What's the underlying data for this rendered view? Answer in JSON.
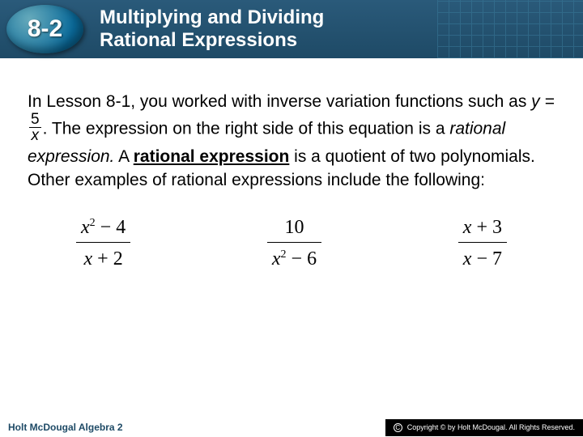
{
  "header": {
    "lesson_number": "8-2",
    "title_line1": "Multiplying and Dividing",
    "title_line2": "Rational Expressions",
    "badge_bg_gradient": [
      "#66aabb",
      "#0a6a9a"
    ],
    "bar_bg": "#1e4a66"
  },
  "body": {
    "p1_a": "In Lesson 8-1, you worked with inverse variation functions such as ",
    "p1_eq_lhs": "y = ",
    "p1_frac": {
      "num": "5",
      "den": "x"
    },
    "p1_b": ". The expression on the right side of this equation is a ",
    "p1_term_italic": "rational expression.",
    "p1_c": " A ",
    "p1_term_bold_underline": "rational expression",
    "p1_d": " is a quotient of two polynomials. Other examples of rational expressions include the following:"
  },
  "expressions": [
    {
      "num_tex": "x² − 4",
      "den_tex": "x + 2"
    },
    {
      "num_tex": "10",
      "den_tex": "x² − 6"
    },
    {
      "num_tex": "x + 3",
      "den_tex": "x − 7"
    }
  ],
  "footer": {
    "left": "Holt McDougal Algebra 2",
    "copyright": "Copyright © by Holt McDougal. All Rights Reserved."
  }
}
